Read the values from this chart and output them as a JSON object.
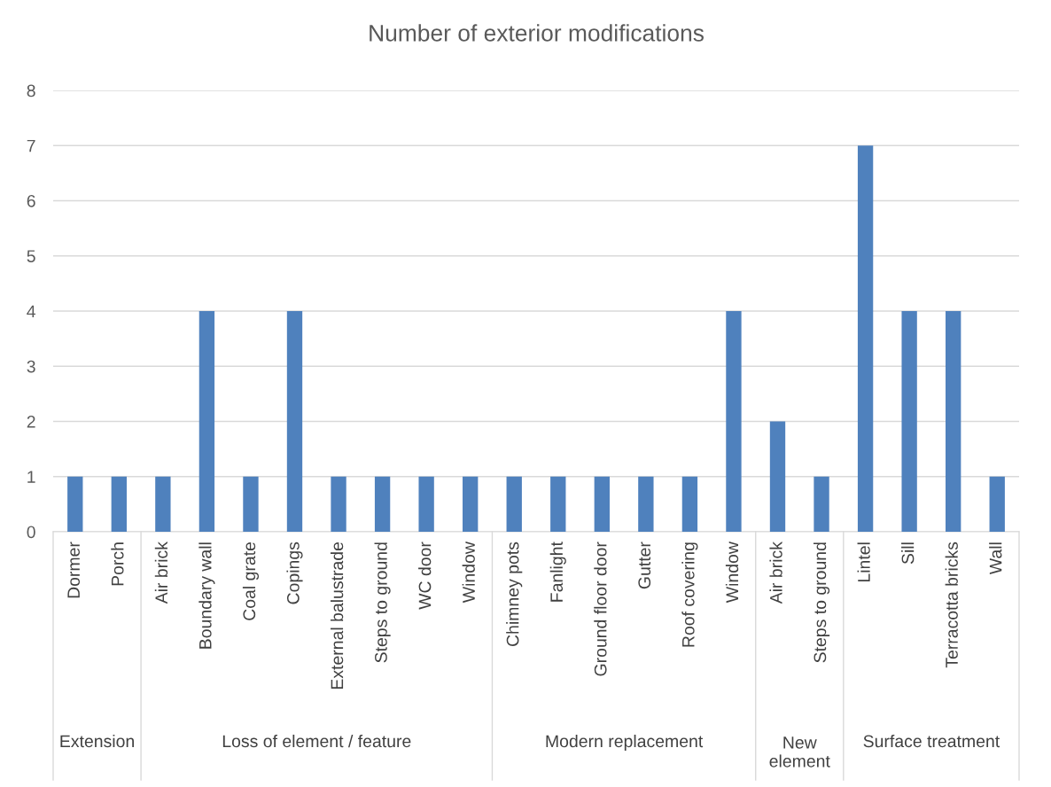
{
  "chart_data": {
    "type": "bar",
    "title": "Number of exterior modifications",
    "categories": [
      "Dormer",
      "Porch",
      "Air brick",
      "Boundary wall",
      "Coal grate",
      "Copings",
      "External balustrade",
      "Steps to ground",
      "WC door",
      "Window",
      "Chimney pots",
      "Fanlight",
      "Ground floor door",
      "Gutter",
      "Roof covering",
      "Window",
      "Air brick",
      "Steps to ground",
      "Lintel",
      "Sill",
      "Terracotta bricks",
      "Wall"
    ],
    "values": [
      1,
      1,
      1,
      4,
      1,
      4,
      1,
      1,
      1,
      1,
      1,
      1,
      1,
      1,
      1,
      4,
      2,
      1,
      7,
      4,
      4,
      1
    ],
    "color": "#4f81bd",
    "ylim": [
      0,
      8
    ],
    "yticks": [
      0,
      1,
      2,
      3,
      4,
      5,
      6,
      7,
      8
    ],
    "grid": "y",
    "annotations": [
      "Extension",
      "Loss of element / feature",
      "Modern replacement",
      "New element",
      "Surface treatment"
    ]
  }
}
